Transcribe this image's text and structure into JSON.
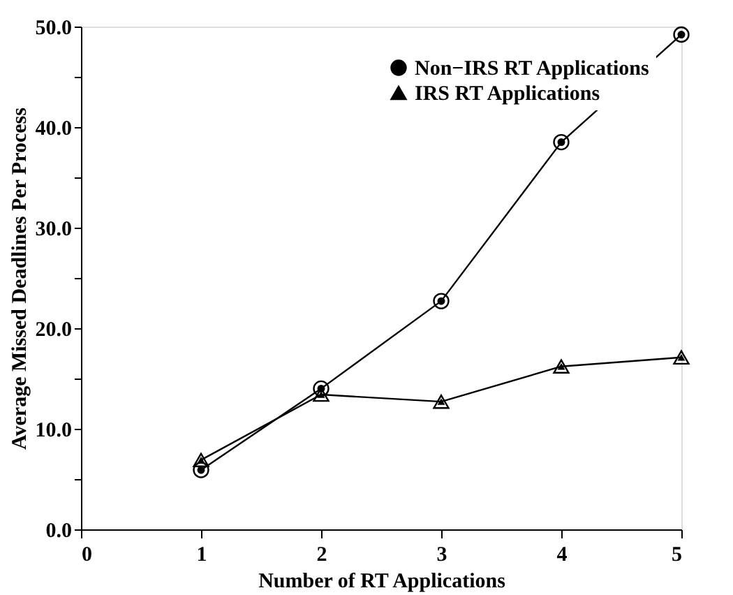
{
  "chart_data": {
    "type": "line",
    "xlabel": "Number of RT Applications",
    "ylabel": "Average Missed Deadlines Per Process",
    "x": [
      1,
      2,
      3,
      4,
      5
    ],
    "series": [
      {
        "name": "Non−IRS RT Applications",
        "color": "#000000",
        "marker": "circle",
        "values": [
          5.9,
          14.0,
          22.7,
          38.5,
          49.2
        ]
      },
      {
        "name": "IRS RT Applications",
        "color": "#000000",
        "marker": "triangle",
        "values": [
          6.9,
          13.4,
          12.7,
          16.2,
          17.1
        ]
      }
    ],
    "xlim": [
      0,
      5
    ],
    "xticks": [
      0,
      1,
      2,
      3,
      4,
      5
    ],
    "ylim": [
      0,
      50
    ],
    "yticks": [
      {
        "value": 0,
        "label": "0.0"
      },
      {
        "value": 5,
        "label": null
      },
      {
        "value": 10,
        "label": "10.0"
      },
      {
        "value": 15,
        "label": null
      },
      {
        "value": 20,
        "label": "20.0"
      },
      {
        "value": 25,
        "label": null
      },
      {
        "value": 30,
        "label": "30.0"
      },
      {
        "value": 35,
        "label": null
      },
      {
        "value": 40,
        "label": "40.0"
      },
      {
        "value": 45,
        "label": null
      },
      {
        "value": 50,
        "label": "50.0"
      }
    ],
    "grid": false,
    "legend": "top right",
    "line_style": "solid"
  }
}
